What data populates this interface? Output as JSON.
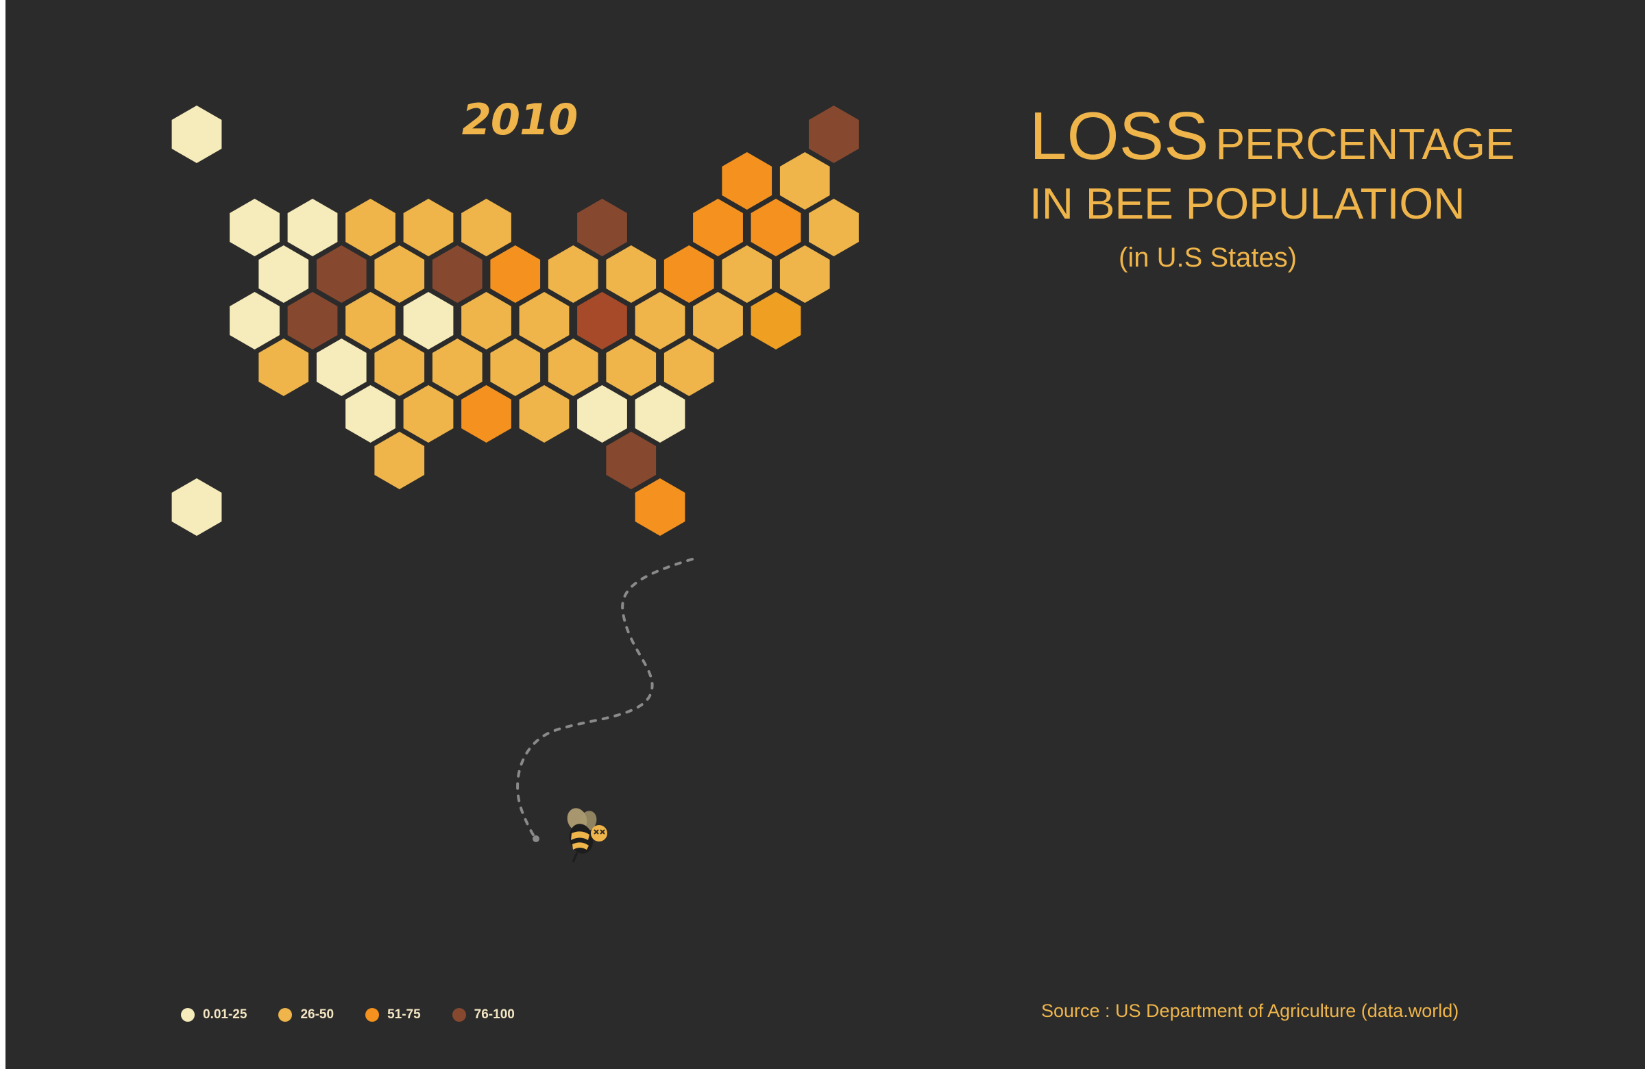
{
  "header": {
    "year": "2010",
    "title_big": "LOSS",
    "title_small": "PERCENTAGE",
    "title_line2": "IN BEE POPULATION",
    "subtitle": "(in U.S States)"
  },
  "source": "Source : US Department of Agriculture (data.world)",
  "colors": {
    "background": "#2b2b2b",
    "accent": "#efb54a",
    "bin_0_25": "#f6ebba",
    "bin_26_50": "#efb54a",
    "bin_51_75": "#f5921f",
    "bin_76_100": "#86492f",
    "highest": "#a74a2a"
  },
  "legend": [
    {
      "label": "0.01-25",
      "color": "#f6ebba"
    },
    {
      "label": "26-50",
      "color": "#efb54a"
    },
    {
      "label": "51-75",
      "color": "#f5921f"
    },
    {
      "label": "76-100",
      "color": "#86492f"
    }
  ],
  "decoration": {
    "bee_icon": "dead-bee-icon",
    "flight_path": "dotted-trail"
  },
  "chart_data": {
    "type": "heatmap",
    "subtype": "hexagon tile map",
    "legend_bins": [
      "0.01-25",
      "26-50",
      "51-75",
      "76-100"
    ],
    "tiles": [
      {
        "row": 0,
        "col": 0,
        "bin": "0.01-25",
        "color": "#f6ebba"
      },
      {
        "row": 0,
        "col": 11,
        "bin": "76-100",
        "color": "#86492f"
      },
      {
        "row": 1,
        "col": 9.5,
        "bin": "51-75",
        "color": "#f5921f"
      },
      {
        "row": 1,
        "col": 10.5,
        "bin": "26-50",
        "color": "#efb54a"
      },
      {
        "row": 2,
        "col": 1,
        "bin": "0.01-25",
        "color": "#f6ebba"
      },
      {
        "row": 2,
        "col": 2,
        "bin": "0.01-25",
        "color": "#f6ebba"
      },
      {
        "row": 2,
        "col": 3,
        "bin": "26-50",
        "color": "#efb54a"
      },
      {
        "row": 2,
        "col": 4,
        "bin": "26-50",
        "color": "#efb54a"
      },
      {
        "row": 2,
        "col": 5,
        "bin": "26-50",
        "color": "#efb54a"
      },
      {
        "row": 2,
        "col": 7,
        "bin": "76-100",
        "color": "#86492f"
      },
      {
        "row": 2,
        "col": 9,
        "bin": "51-75",
        "color": "#f5921f"
      },
      {
        "row": 2,
        "col": 10,
        "bin": "51-75",
        "color": "#f5921f"
      },
      {
        "row": 2,
        "col": 11,
        "bin": "26-50",
        "color": "#efb54a"
      },
      {
        "row": 3,
        "col": 1.5,
        "bin": "0.01-25",
        "color": "#f6ebba"
      },
      {
        "row": 3,
        "col": 2.5,
        "bin": "76-100",
        "color": "#86492f"
      },
      {
        "row": 3,
        "col": 3.5,
        "bin": "26-50",
        "color": "#efb54a"
      },
      {
        "row": 3,
        "col": 4.5,
        "bin": "76-100",
        "color": "#86492f"
      },
      {
        "row": 3,
        "col": 5.5,
        "bin": "51-75",
        "color": "#f5921f"
      },
      {
        "row": 3,
        "col": 6.5,
        "bin": "26-50",
        "color": "#efb54a"
      },
      {
        "row": 3,
        "col": 7.5,
        "bin": "26-50",
        "color": "#efb54a"
      },
      {
        "row": 3,
        "col": 8.5,
        "bin": "51-75",
        "color": "#f5921f"
      },
      {
        "row": 3,
        "col": 9.5,
        "bin": "26-50",
        "color": "#efb54a"
      },
      {
        "row": 3,
        "col": 10.5,
        "bin": "26-50",
        "color": "#efb54a"
      },
      {
        "row": 4,
        "col": 1,
        "bin": "0.01-25",
        "color": "#f6ebba"
      },
      {
        "row": 4,
        "col": 2,
        "bin": "76-100",
        "color": "#86492f"
      },
      {
        "row": 4,
        "col": 3,
        "bin": "26-50",
        "color": "#efb54a"
      },
      {
        "row": 4,
        "col": 4,
        "bin": "0.01-25",
        "color": "#f6ebba"
      },
      {
        "row": 4,
        "col": 5,
        "bin": "26-50",
        "color": "#efb54a"
      },
      {
        "row": 4,
        "col": 6,
        "bin": "26-50",
        "color": "#efb54a"
      },
      {
        "row": 4,
        "col": 7,
        "bin": "76-100",
        "color": "#a74a2a"
      },
      {
        "row": 4,
        "col": 8,
        "bin": "26-50",
        "color": "#efb54a"
      },
      {
        "row": 4,
        "col": 9,
        "bin": "26-50",
        "color": "#efb54a"
      },
      {
        "row": 4,
        "col": 10,
        "bin": "51-75",
        "color": "#efa022"
      },
      {
        "row": 5,
        "col": 1.5,
        "bin": "26-50",
        "color": "#efb54a"
      },
      {
        "row": 5,
        "col": 2.5,
        "bin": "0.01-25",
        "color": "#f6ebba"
      },
      {
        "row": 5,
        "col": 3.5,
        "bin": "26-50",
        "color": "#efb54a"
      },
      {
        "row": 5,
        "col": 4.5,
        "bin": "26-50",
        "color": "#efb54a"
      },
      {
        "row": 5,
        "col": 5.5,
        "bin": "26-50",
        "color": "#efb54a"
      },
      {
        "row": 5,
        "col": 6.5,
        "bin": "26-50",
        "color": "#efb54a"
      },
      {
        "row": 5,
        "col": 7.5,
        "bin": "26-50",
        "color": "#efb54a"
      },
      {
        "row": 5,
        "col": 8.5,
        "bin": "26-50",
        "color": "#efb54a"
      },
      {
        "row": 6,
        "col": 3,
        "bin": "0.01-25",
        "color": "#f6ebba"
      },
      {
        "row": 6,
        "col": 4,
        "bin": "26-50",
        "color": "#efb54a"
      },
      {
        "row": 6,
        "col": 5,
        "bin": "51-75",
        "color": "#f5921f"
      },
      {
        "row": 6,
        "col": 6,
        "bin": "26-50",
        "color": "#efb54a"
      },
      {
        "row": 6,
        "col": 7,
        "bin": "0.01-25",
        "color": "#f6ebba"
      },
      {
        "row": 6,
        "col": 8,
        "bin": "0.01-25",
        "color": "#f6ebba"
      },
      {
        "row": 7,
        "col": 3.5,
        "bin": "26-50",
        "color": "#efb54a"
      },
      {
        "row": 7,
        "col": 7.5,
        "bin": "76-100",
        "color": "#86492f"
      },
      {
        "row": 8,
        "col": 0,
        "bin": "0.01-25",
        "color": "#f6ebba"
      },
      {
        "row": 8,
        "col": 8,
        "bin": "51-75",
        "color": "#f5921f"
      }
    ]
  }
}
